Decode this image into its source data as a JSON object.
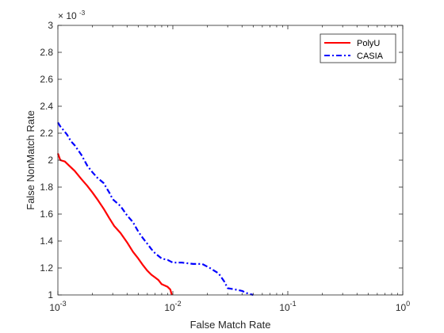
{
  "chart_data": {
    "type": "line",
    "xlabel": "False Match Rate",
    "ylabel": "False NonMatch Rate",
    "xscale": "log",
    "xlim": [
      0.001,
      1
    ],
    "ylim": [
      0.001,
      0.003
    ],
    "y_multiplier_label": "× 10",
    "y_multiplier_exponent": "-3",
    "x_tick_labels": [
      {
        "base": "10",
        "exp": "-3",
        "value": 0.001
      },
      {
        "base": "10",
        "exp": "-2",
        "value": 0.01
      },
      {
        "base": "10",
        "exp": "-1",
        "value": 0.1
      },
      {
        "base": "10",
        "exp": "0",
        "value": 1
      }
    ],
    "y_ticks": [
      1,
      1.2,
      1.4,
      1.6,
      1.8,
      2,
      2.2,
      2.4,
      2.6,
      2.8,
      3
    ],
    "y_tick_labels": [
      "1",
      "1.2",
      "1.4",
      "1.6",
      "1.8",
      "2",
      "2.2",
      "2.4",
      "2.6",
      "2.8",
      "3"
    ],
    "grid": false,
    "legend_position": "top-right",
    "series": [
      {
        "name": "PolyU",
        "color": "#ff0000",
        "style": "solid",
        "x": [
          0.001,
          0.00105,
          0.00115,
          0.00125,
          0.0014,
          0.0016,
          0.0018,
          0.002,
          0.0022,
          0.0025,
          0.0028,
          0.0031,
          0.0035,
          0.004,
          0.0045,
          0.005,
          0.0055,
          0.006,
          0.0065,
          0.007,
          0.0075,
          0.008,
          0.0085,
          0.009,
          0.0095,
          0.0098
        ],
        "y": [
          0.00205,
          0.002,
          0.00199,
          0.00196,
          0.00192,
          0.00186,
          0.00181,
          0.00176,
          0.00171,
          0.00164,
          0.00157,
          0.00151,
          0.00146,
          0.00139,
          0.00132,
          0.00127,
          0.00122,
          0.00118,
          0.00115,
          0.00113,
          0.00111,
          0.00108,
          0.00107,
          0.00106,
          0.00104,
          0.001
        ]
      },
      {
        "name": "CASIA",
        "color": "#0000ff",
        "style": "dash-dot",
        "x": [
          0.001,
          0.00105,
          0.0011,
          0.0012,
          0.0013,
          0.0014,
          0.0016,
          0.0018,
          0.002,
          0.0022,
          0.0025,
          0.0028,
          0.003,
          0.0035,
          0.004,
          0.0045,
          0.005,
          0.0055,
          0.006,
          0.0065,
          0.007,
          0.008,
          0.009,
          0.01,
          0.012,
          0.015,
          0.018,
          0.021,
          0.025,
          0.028,
          0.03,
          0.035,
          0.04,
          0.045,
          0.05
        ],
        "y": [
          0.00228,
          0.00225,
          0.00223,
          0.00219,
          0.00214,
          0.00211,
          0.00204,
          0.00196,
          0.00191,
          0.00187,
          0.00183,
          0.00176,
          0.00171,
          0.00166,
          0.00159,
          0.00154,
          0.00147,
          0.00142,
          0.00138,
          0.00134,
          0.00131,
          0.00127,
          0.00126,
          0.00124,
          0.00124,
          0.00123,
          0.00123,
          0.0012,
          0.00116,
          0.0011,
          0.00105,
          0.00104,
          0.00103,
          0.00101,
          0.001
        ]
      }
    ]
  }
}
